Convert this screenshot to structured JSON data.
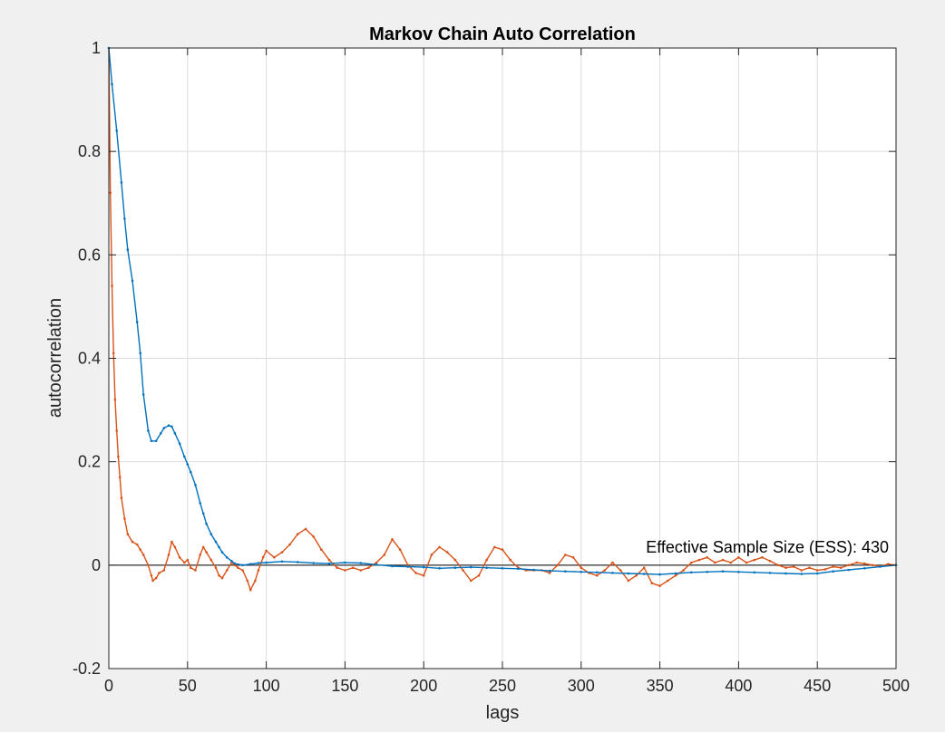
{
  "chart_data": {
    "type": "line",
    "title": "Markov Chain Auto Correlation",
    "xlabel": "lags",
    "ylabel": "autocorrelation",
    "xlim": [
      0,
      500
    ],
    "ylim": [
      -0.2,
      1
    ],
    "xticks": [
      0,
      50,
      100,
      150,
      200,
      250,
      300,
      350,
      400,
      450,
      500
    ],
    "yticks": [
      -0.2,
      0,
      0.2,
      0.4,
      0.6,
      0.8,
      1
    ],
    "ytick_labels": [
      "-0.2",
      "0",
      "0.2",
      "0.4",
      "0.6",
      "0.8",
      "1"
    ],
    "grid": true,
    "annotation": "Effective Sample Size (ESS): 430",
    "zero_line": 0,
    "series": [
      {
        "color": "#0072bd",
        "marker": "dot",
        "x": [
          0,
          2,
          5,
          8,
          10,
          12,
          15,
          18,
          20,
          22,
          25,
          27,
          30,
          33,
          35,
          38,
          40,
          42,
          45,
          48,
          50,
          52,
          55,
          58,
          60,
          62,
          65,
          68,
          70,
          72,
          75,
          78,
          80,
          85,
          90,
          95,
          100,
          110,
          120,
          130,
          140,
          150,
          160,
          170,
          180,
          190,
          200,
          210,
          220,
          230,
          240,
          250,
          260,
          270,
          280,
          290,
          300,
          310,
          320,
          330,
          340,
          350,
          360,
          370,
          380,
          390,
          400,
          410,
          420,
          430,
          440,
          450,
          460,
          470,
          480,
          490,
          500
        ],
        "y": [
          1.0,
          0.93,
          0.84,
          0.74,
          0.67,
          0.61,
          0.55,
          0.47,
          0.41,
          0.33,
          0.26,
          0.24,
          0.24,
          0.255,
          0.265,
          0.27,
          0.268,
          0.255,
          0.235,
          0.21,
          0.195,
          0.18,
          0.155,
          0.12,
          0.1,
          0.08,
          0.06,
          0.045,
          0.035,
          0.025,
          0.015,
          0.008,
          0.003,
          0.0,
          0.002,
          0.004,
          0.005,
          0.007,
          0.006,
          0.004,
          0.003,
          0.005,
          0.004,
          0.001,
          -0.002,
          -0.003,
          -0.004,
          -0.006,
          -0.005,
          -0.004,
          -0.005,
          -0.006,
          -0.007,
          -0.009,
          -0.011,
          -0.012,
          -0.013,
          -0.014,
          -0.015,
          -0.016,
          -0.017,
          -0.018,
          -0.016,
          -0.014,
          -0.013,
          -0.012,
          -0.013,
          -0.014,
          -0.015,
          -0.016,
          -0.017,
          -0.016,
          -0.012,
          -0.009,
          -0.006,
          -0.003,
          0.0
        ]
      },
      {
        "color": "#d95319",
        "marker": "dot",
        "x": [
          0,
          1,
          2,
          3,
          4,
          5,
          6,
          7,
          8,
          10,
          12,
          15,
          18,
          20,
          22,
          25,
          27,
          28,
          30,
          32,
          35,
          38,
          40,
          42,
          45,
          48,
          50,
          52,
          55,
          58,
          60,
          62,
          65,
          68,
          70,
          72,
          75,
          78,
          80,
          82,
          85,
          88,
          90,
          93,
          95,
          98,
          100,
          105,
          110,
          115,
          120,
          125,
          130,
          135,
          140,
          145,
          150,
          155,
          160,
          165,
          170,
          175,
          180,
          185,
          190,
          195,
          200,
          205,
          210,
          215,
          220,
          225,
          230,
          235,
          240,
          245,
          250,
          255,
          260,
          265,
          270,
          275,
          280,
          285,
          290,
          295,
          300,
          305,
          310,
          315,
          320,
          325,
          330,
          335,
          340,
          345,
          350,
          355,
          360,
          365,
          370,
          375,
          380,
          385,
          390,
          395,
          400,
          405,
          410,
          415,
          420,
          425,
          430,
          435,
          440,
          445,
          450,
          455,
          460,
          465,
          470,
          475,
          480,
          485,
          490,
          495,
          500
        ],
        "y": [
          1.0,
          0.72,
          0.54,
          0.41,
          0.32,
          0.26,
          0.21,
          0.17,
          0.13,
          0.09,
          0.06,
          0.045,
          0.04,
          0.03,
          0.02,
          0.0,
          -0.02,
          -0.03,
          -0.025,
          -0.015,
          -0.01,
          0.02,
          0.045,
          0.035,
          0.015,
          0.005,
          0.01,
          -0.005,
          -0.01,
          0.02,
          0.035,
          0.025,
          0.01,
          -0.005,
          -0.02,
          -0.025,
          -0.01,
          0.005,
          0.0,
          -0.005,
          -0.01,
          -0.03,
          -0.048,
          -0.03,
          -0.01,
          0.015,
          0.028,
          0.015,
          0.025,
          0.04,
          0.06,
          0.07,
          0.055,
          0.03,
          0.01,
          -0.005,
          -0.01,
          -0.005,
          -0.01,
          -0.005,
          0.005,
          0.02,
          0.05,
          0.03,
          0.0,
          -0.015,
          -0.02,
          0.02,
          0.035,
          0.025,
          0.01,
          -0.01,
          -0.03,
          -0.02,
          0.01,
          0.035,
          0.03,
          0.01,
          -0.005,
          -0.01,
          -0.01,
          -0.01,
          -0.015,
          0.0,
          0.02,
          0.015,
          -0.005,
          -0.015,
          -0.02,
          -0.01,
          0.005,
          -0.01,
          -0.03,
          -0.02,
          -0.005,
          -0.035,
          -0.04,
          -0.03,
          -0.02,
          -0.01,
          0.005,
          0.01,
          0.015,
          0.005,
          0.01,
          0.005,
          0.015,
          0.005,
          0.01,
          0.015,
          0.008,
          0.0,
          -0.005,
          -0.003,
          -0.01,
          -0.005,
          -0.01,
          -0.008,
          -0.003,
          -0.005,
          0.0,
          0.005,
          0.003,
          0.0,
          -0.002,
          0.002,
          0.0
        ]
      }
    ]
  }
}
